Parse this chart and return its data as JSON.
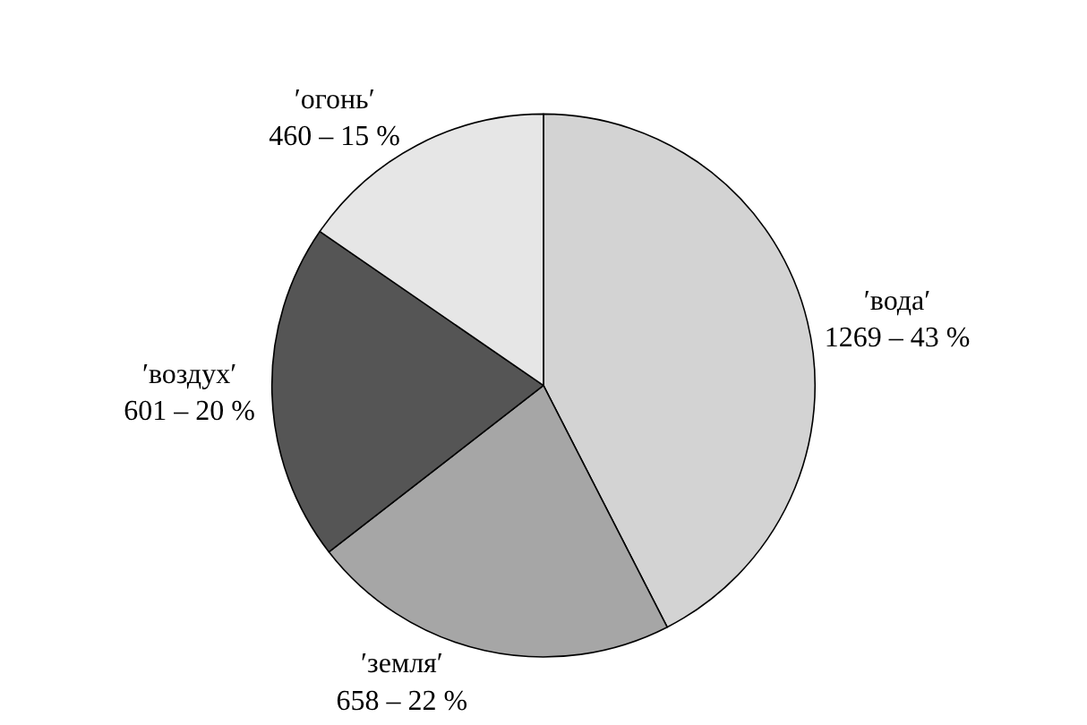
{
  "chart_data": {
    "type": "pie",
    "categories": [
      "′вода′",
      "′земля′",
      "′воздух′",
      "′огонь′"
    ],
    "values": [
      1269,
      658,
      601,
      460
    ],
    "value_labels": [
      "1269 – 43 %",
      "658 – 22 %",
      "601 – 20 %",
      "460 – 15 %"
    ],
    "colors": [
      "#d3d3d3",
      "#a6a6a6",
      "#555555",
      "#e6e6e6"
    ],
    "legend": false
  }
}
